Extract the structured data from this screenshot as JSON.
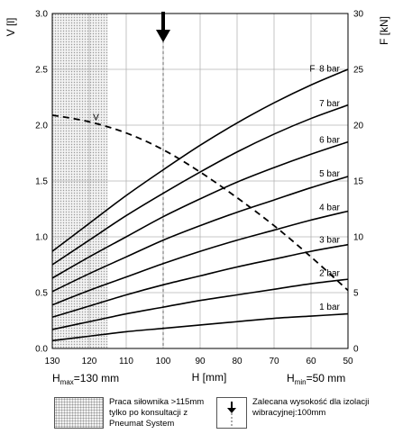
{
  "chart_data": {
    "type": "line",
    "xlabel": "H [mm]",
    "x_ticks": [
      130,
      120,
      110,
      100,
      90,
      80,
      70,
      60,
      50
    ],
    "xlim": [
      130,
      50
    ],
    "x_reversed": true,
    "ylabel_left": "V [l]",
    "y_left_ticks": [
      "0.0",
      "0.5",
      "1.0",
      "1.5",
      "2.0",
      "2.5",
      "3.0"
    ],
    "ylim_left": [
      0,
      3.0
    ],
    "ylabel_right": "F [kN]",
    "y_right_ticks": [
      "0",
      "5",
      "10",
      "15",
      "20",
      "25",
      "30"
    ],
    "ylim_right": [
      0,
      30
    ],
    "grid": true,
    "hmax_label": {
      "main": "H",
      "sub": "max",
      "rest": "=130 mm"
    },
    "hmin_label": {
      "main": "H",
      "sub": "min",
      "rest": "=50 mm"
    },
    "hatched_region_x": [
      130,
      115
    ],
    "recommended_height": 100,
    "force_label": "F",
    "volume_label": "V",
    "volume_series": {
      "name": "V",
      "axis": "left",
      "x": [
        130,
        120,
        110,
        100,
        90,
        80,
        70,
        60,
        50
      ],
      "y": [
        2.09,
        2.03,
        1.93,
        1.78,
        1.58,
        1.35,
        1.1,
        0.82,
        0.52
      ]
    },
    "force_series": [
      {
        "name": "8 bar",
        "axis": "right",
        "x": [
          130,
          120,
          110,
          100,
          90,
          80,
          70,
          60,
          50
        ],
        "y": [
          8.7,
          11.2,
          13.7,
          16.0,
          18.2,
          20.2,
          22.0,
          23.6,
          25.0
        ]
      },
      {
        "name": "7 bar",
        "axis": "right",
        "x": [
          130,
          120,
          110,
          100,
          90,
          80,
          70,
          60,
          50
        ],
        "y": [
          7.5,
          9.7,
          11.9,
          13.9,
          15.8,
          17.6,
          19.2,
          20.6,
          21.8
        ]
      },
      {
        "name": "6 bar",
        "axis": "right",
        "x": [
          130,
          120,
          110,
          100,
          90,
          80,
          70,
          60,
          50
        ],
        "y": [
          6.3,
          8.2,
          10.0,
          11.8,
          13.4,
          14.9,
          16.2,
          17.4,
          18.5
        ]
      },
      {
        "name": "5 bar",
        "axis": "right",
        "x": [
          130,
          120,
          110,
          100,
          90,
          80,
          70,
          60,
          50
        ],
        "y": [
          5.1,
          6.7,
          8.2,
          9.7,
          11.0,
          12.2,
          13.3,
          14.4,
          15.4
        ]
      },
      {
        "name": "4 bar",
        "axis": "right",
        "x": [
          130,
          120,
          110,
          100,
          90,
          80,
          70,
          60,
          50
        ],
        "y": [
          3.9,
          5.2,
          6.4,
          7.6,
          8.7,
          9.7,
          10.6,
          11.5,
          12.3
        ]
      },
      {
        "name": "3 bar",
        "axis": "right",
        "x": [
          130,
          120,
          110,
          100,
          90,
          80,
          70,
          60,
          50
        ],
        "y": [
          2.8,
          3.8,
          4.8,
          5.7,
          6.5,
          7.3,
          8.0,
          8.7,
          9.3
        ]
      },
      {
        "name": "2 bar",
        "axis": "right",
        "x": [
          130,
          120,
          110,
          100,
          90,
          80,
          70,
          60,
          50
        ],
        "y": [
          1.7,
          2.4,
          3.1,
          3.7,
          4.3,
          4.8,
          5.3,
          5.8,
          6.2
        ]
      },
      {
        "name": "1 bar",
        "axis": "right",
        "x": [
          130,
          120,
          110,
          100,
          90,
          80,
          70,
          60,
          50
        ],
        "y": [
          0.7,
          1.1,
          1.5,
          1.8,
          2.1,
          2.4,
          2.7,
          2.9,
          3.1
        ]
      }
    ]
  },
  "legend": {
    "hatched_text": [
      "Praca siłownika >115mm",
      "tylko po konsultacji z",
      "Pneumat System"
    ],
    "arrow_text": [
      "Zalecana wysokość dla izolacji",
      "wibracyjnej:100mm"
    ]
  }
}
